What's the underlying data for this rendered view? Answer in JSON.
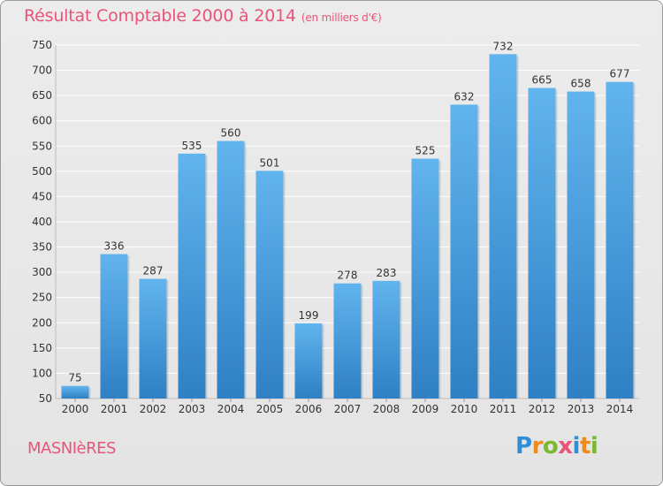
{
  "header": {
    "title": "Résultat Comptable 2000 à 2014",
    "unit": "(en milliers d'€)"
  },
  "footer": {
    "commune": "MASNIèRES",
    "logo_letters": [
      "P",
      "r",
      "o",
      "x",
      "i",
      "t",
      "i"
    ],
    "logo_colors": [
      "#2f8fd6",
      "#f08a1c",
      "#7ab92c",
      "#e8547a",
      "#2f8fd6",
      "#f08a1c",
      "#7ab92c"
    ]
  },
  "colors": {
    "bar_top": "#62b4ee",
    "bar_bottom": "#2f80c4",
    "grid": "#ffffff",
    "axis_text": "#333333"
  },
  "chart_data": {
    "type": "bar",
    "title": "Résultat Comptable 2000 à 2014",
    "subtitle": "(en milliers d'€)",
    "categories": [
      "2000",
      "2001",
      "2002",
      "2003",
      "2004",
      "2005",
      "2006",
      "2007",
      "2008",
      "2009",
      "2010",
      "2011",
      "2012",
      "2013",
      "2014"
    ],
    "values": [
      75,
      336,
      287,
      535,
      560,
      501,
      199,
      278,
      283,
      525,
      632,
      732,
      665,
      658,
      677
    ],
    "ylim": [
      50,
      750
    ],
    "yticks": [
      50,
      100,
      150,
      200,
      250,
      300,
      350,
      400,
      450,
      500,
      550,
      600,
      650,
      700,
      750
    ],
    "grid": true,
    "legend": "none"
  }
}
